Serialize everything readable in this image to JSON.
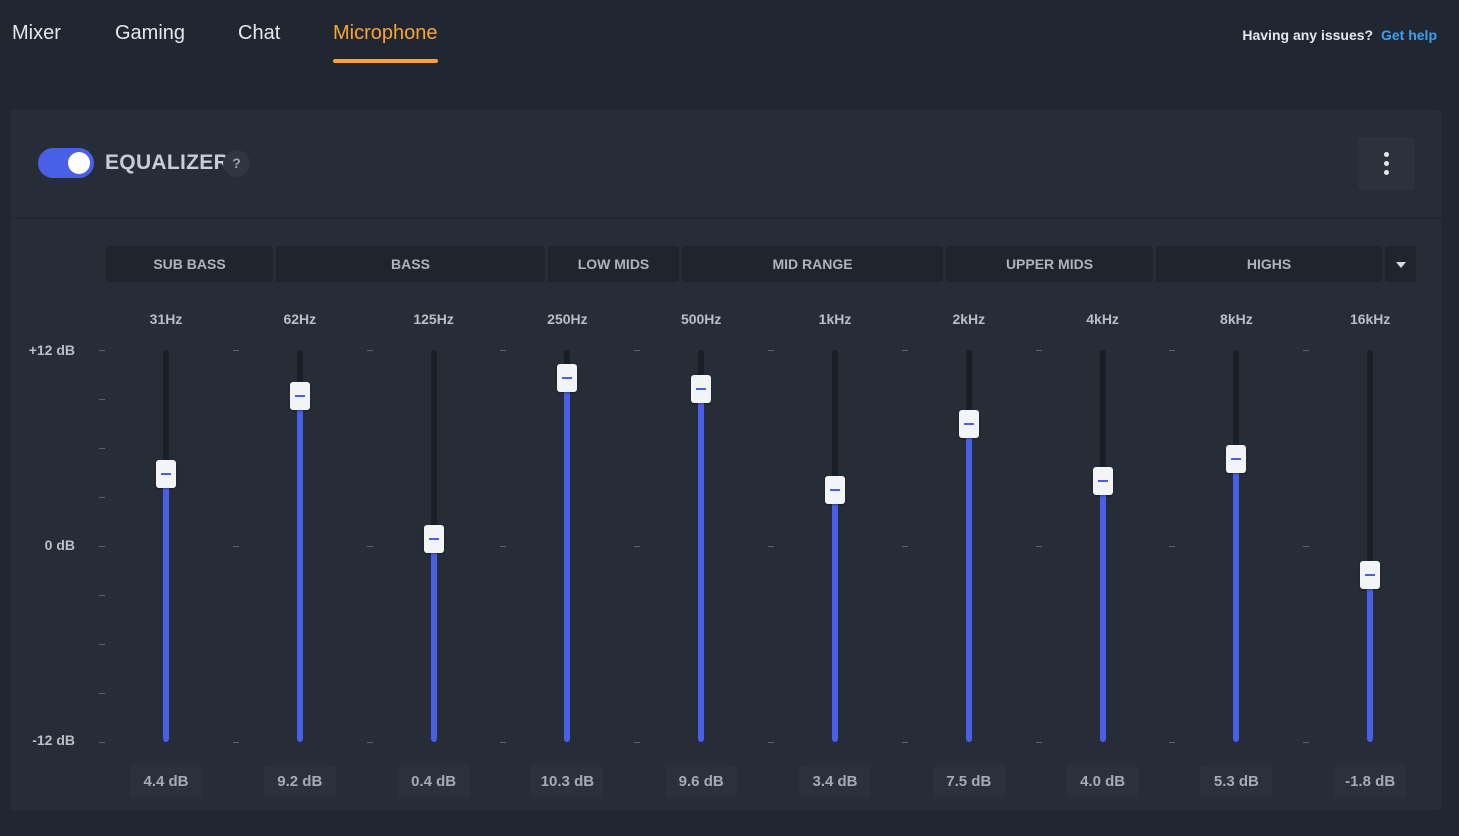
{
  "tabs": [
    {
      "label": "Mixer",
      "active": false
    },
    {
      "label": "Gaming",
      "active": false
    },
    {
      "label": "Chat",
      "active": false
    },
    {
      "label": "Microphone",
      "active": true
    }
  ],
  "help": {
    "question": "Having any issues?",
    "link": "Get help"
  },
  "equalizer": {
    "title": "EQUALIZER",
    "enabled": true,
    "help_badge": "?",
    "accent_color": "#4a5fe8",
    "active_tab_color": "#f5a43a",
    "bands": [
      "SUB BASS",
      "BASS",
      "LOW MIDS",
      "MID RANGE",
      "UPPER MIDS",
      "HIGHS"
    ],
    "axis": {
      "max_label": "+12 dB",
      "mid_label": "0 dB",
      "min_label": "-12 dB",
      "range": [
        -12,
        12
      ]
    },
    "sliders": [
      {
        "freq": "31Hz",
        "gain": 4.4,
        "value_label": "4.4 dB"
      },
      {
        "freq": "62Hz",
        "gain": 9.2,
        "value_label": "9.2 dB"
      },
      {
        "freq": "125Hz",
        "gain": 0.4,
        "value_label": "0.4 dB"
      },
      {
        "freq": "250Hz",
        "gain": 10.3,
        "value_label": "10.3 dB"
      },
      {
        "freq": "500Hz",
        "gain": 9.6,
        "value_label": "9.6 dB"
      },
      {
        "freq": "1kHz",
        "gain": 3.4,
        "value_label": "3.4 dB"
      },
      {
        "freq": "2kHz",
        "gain": 7.5,
        "value_label": "7.5 dB"
      },
      {
        "freq": "4kHz",
        "gain": 4.0,
        "value_label": "4.0 dB"
      },
      {
        "freq": "8kHz",
        "gain": 5.3,
        "value_label": "5.3 dB"
      },
      {
        "freq": "16kHz",
        "gain": -1.8,
        "value_label": "-1.8 dB"
      }
    ]
  }
}
